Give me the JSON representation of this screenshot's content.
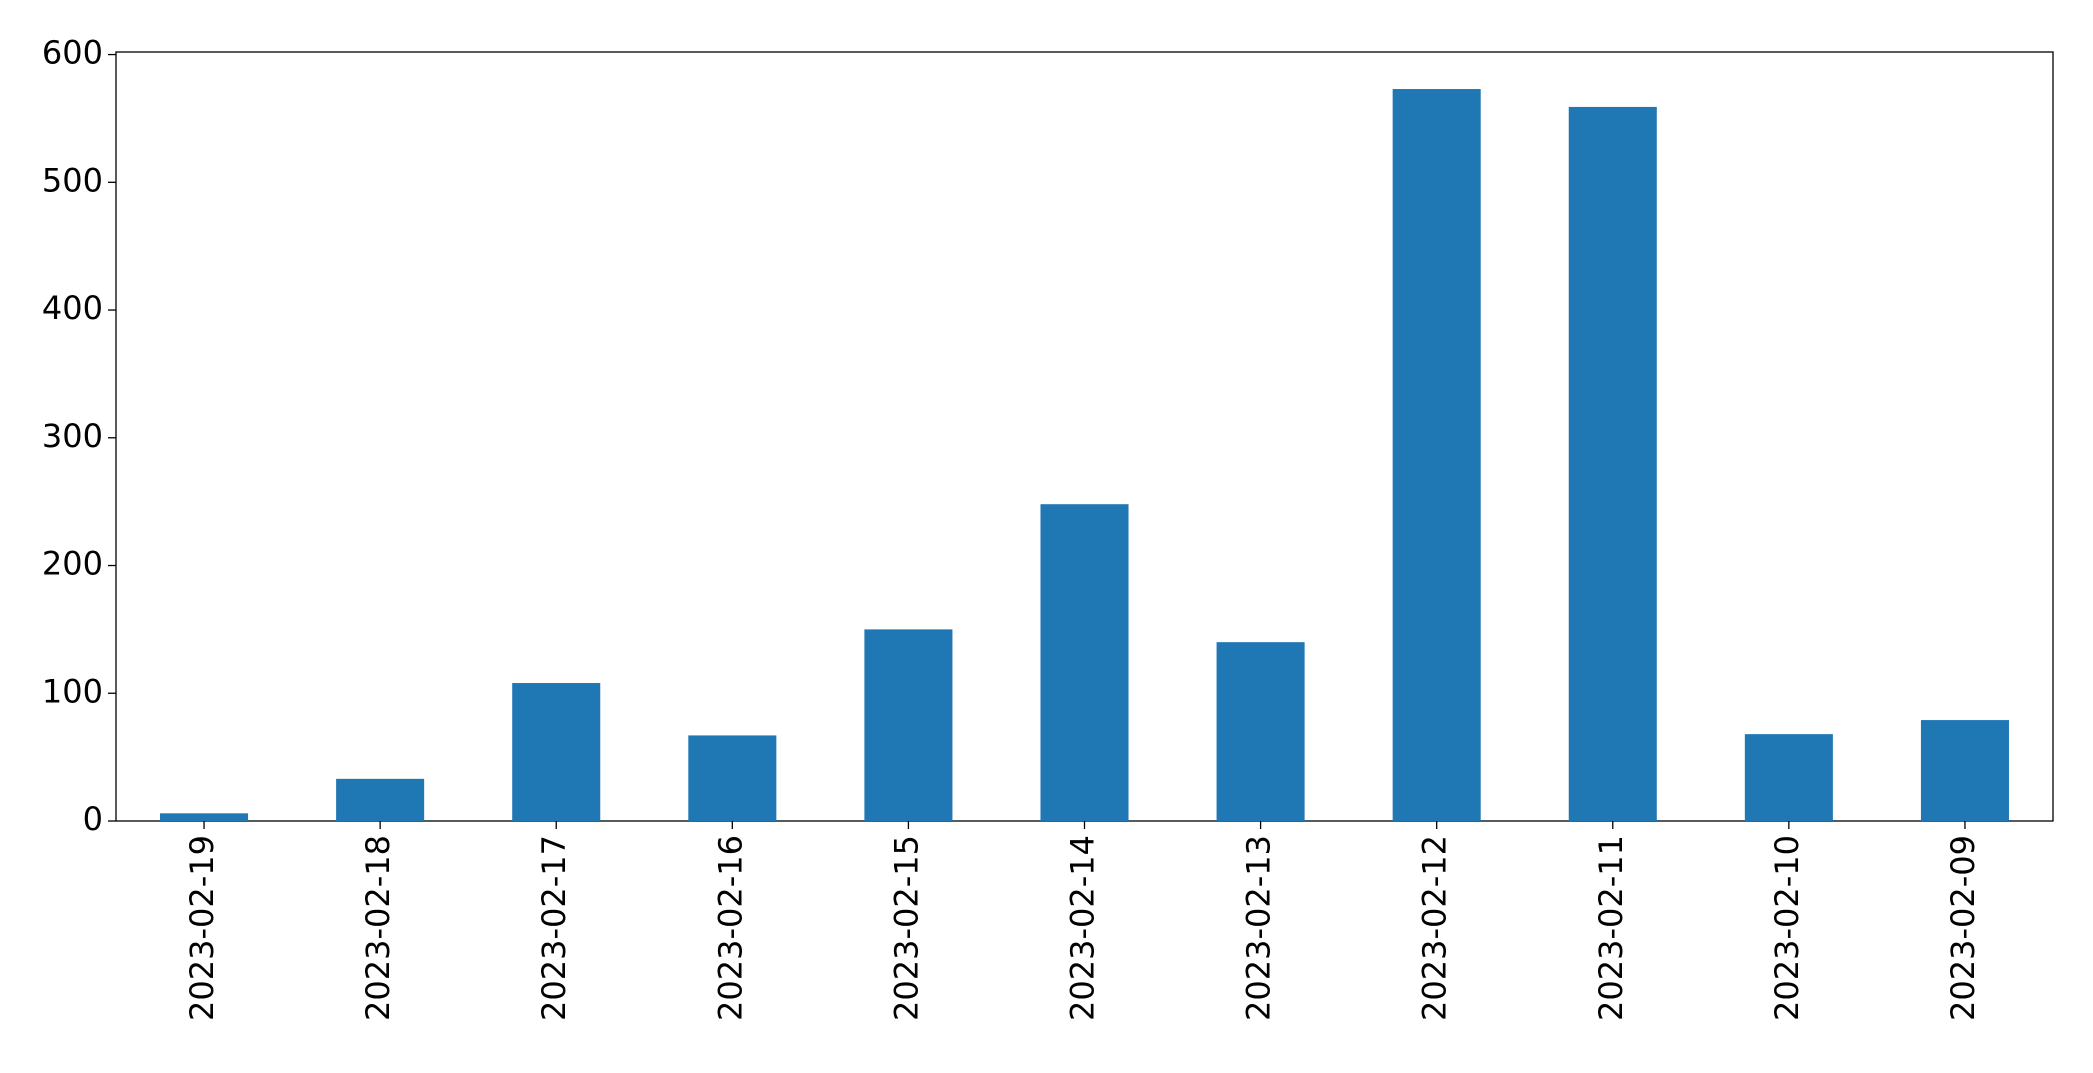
{
  "chart_data": {
    "type": "bar",
    "categories": [
      "2023-02-19",
      "2023-02-18",
      "2023-02-17",
      "2023-02-16",
      "2023-02-15",
      "2023-02-14",
      "2023-02-13",
      "2023-02-12",
      "2023-02-11",
      "2023-02-10",
      "2023-02-09"
    ],
    "values": [
      6,
      33,
      108,
      67,
      150,
      248,
      140,
      573,
      559,
      68,
      79
    ],
    "color": "#1f77b4",
    "ylim": [
      0,
      602
    ],
    "yticks": [
      0,
      100,
      200,
      300,
      400,
      500,
      600
    ],
    "grid": false
  }
}
